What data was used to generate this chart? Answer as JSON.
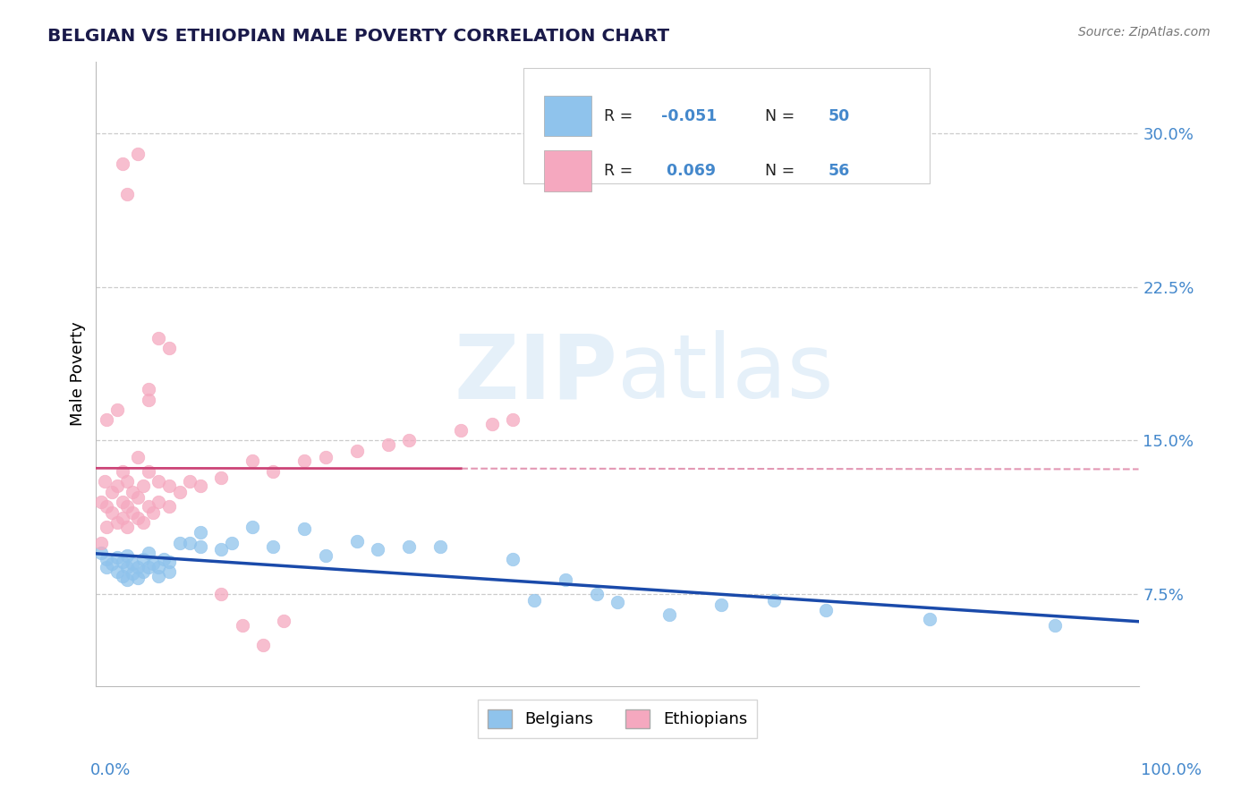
{
  "title": "BELGIAN VS ETHIOPIAN MALE POVERTY CORRELATION CHART",
  "source_text": "Source: ZipAtlas.com",
  "ylabel": "Male Poverty",
  "y_tick_positions": [
    0.075,
    0.15,
    0.225,
    0.3
  ],
  "y_tick_labels": [
    "7.5%",
    "15.0%",
    "22.5%",
    "30.0%"
  ],
  "x_min": 0.0,
  "x_max": 1.0,
  "y_min": 0.03,
  "y_max": 0.335,
  "belgian_color": "#8fc3ec",
  "ethiopian_color": "#f5a8bf",
  "belgian_line_color": "#1a4aaa",
  "ethiopian_line_color": "#cc4477",
  "watermark": "ZIPatlas",
  "belgians_label": "Belgians",
  "ethiopians_label": "Ethiopians",
  "belgian_R": -0.051,
  "ethiopian_R": 0.069,
  "belgian_N": 50,
  "ethiopian_N": 56,
  "belgian_x": [
    0.005,
    0.01,
    0.01,
    0.015,
    0.02,
    0.02,
    0.025,
    0.025,
    0.03,
    0.03,
    0.03,
    0.035,
    0.035,
    0.04,
    0.04,
    0.045,
    0.045,
    0.05,
    0.05,
    0.055,
    0.06,
    0.06,
    0.065,
    0.07,
    0.07,
    0.08,
    0.09,
    0.1,
    0.1,
    0.12,
    0.13,
    0.15,
    0.17,
    0.2,
    0.22,
    0.25,
    0.27,
    0.3,
    0.33,
    0.4,
    0.42,
    0.45,
    0.48,
    0.5,
    0.55,
    0.6,
    0.65,
    0.7,
    0.8,
    0.92
  ],
  "belgian_y": [
    0.095,
    0.092,
    0.088,
    0.09,
    0.093,
    0.086,
    0.091,
    0.084,
    0.094,
    0.088,
    0.082,
    0.09,
    0.085,
    0.088,
    0.083,
    0.092,
    0.086,
    0.095,
    0.088,
    0.09,
    0.088,
    0.084,
    0.092,
    0.091,
    0.086,
    0.1,
    0.1,
    0.105,
    0.098,
    0.097,
    0.1,
    0.108,
    0.098,
    0.107,
    0.094,
    0.101,
    0.097,
    0.098,
    0.098,
    0.092,
    0.072,
    0.082,
    0.075,
    0.071,
    0.065,
    0.07,
    0.072,
    0.067,
    0.063,
    0.06
  ],
  "ethiopian_x": [
    0.005,
    0.005,
    0.008,
    0.01,
    0.01,
    0.01,
    0.015,
    0.015,
    0.02,
    0.02,
    0.02,
    0.025,
    0.025,
    0.025,
    0.03,
    0.03,
    0.03,
    0.035,
    0.035,
    0.04,
    0.04,
    0.04,
    0.045,
    0.045,
    0.05,
    0.05,
    0.055,
    0.06,
    0.06,
    0.07,
    0.07,
    0.08,
    0.09,
    0.1,
    0.12,
    0.15,
    0.17,
    0.2,
    0.22,
    0.25,
    0.28,
    0.3,
    0.35,
    0.38,
    0.4,
    0.12,
    0.14,
    0.16,
    0.18,
    0.05,
    0.025,
    0.03,
    0.04,
    0.05,
    0.06,
    0.07
  ],
  "ethiopian_y": [
    0.1,
    0.12,
    0.13,
    0.118,
    0.108,
    0.16,
    0.115,
    0.125,
    0.11,
    0.128,
    0.165,
    0.112,
    0.12,
    0.135,
    0.108,
    0.118,
    0.13,
    0.115,
    0.125,
    0.112,
    0.122,
    0.142,
    0.11,
    0.128,
    0.118,
    0.135,
    0.115,
    0.12,
    0.13,
    0.118,
    0.128,
    0.125,
    0.13,
    0.128,
    0.132,
    0.14,
    0.135,
    0.14,
    0.142,
    0.145,
    0.148,
    0.15,
    0.155,
    0.158,
    0.16,
    0.075,
    0.06,
    0.05,
    0.062,
    0.17,
    0.285,
    0.27,
    0.29,
    0.175,
    0.2,
    0.195
  ],
  "grid_color": "#cccccc",
  "tick_color": "#4488cc",
  "title_color": "#1a1a4a",
  "source_color": "#777777"
}
